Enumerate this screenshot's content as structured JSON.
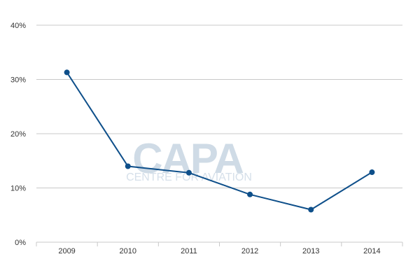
{
  "chart_data": {
    "type": "line",
    "x": [
      "2009",
      "2010",
      "2011",
      "2012",
      "2013",
      "2014"
    ],
    "series": [
      {
        "values": [
          31.3,
          14.0,
          12.8,
          8.8,
          6.0,
          12.9
        ]
      }
    ],
    "y_ticks": [
      "0%",
      "10%",
      "20%",
      "30%",
      "40%"
    ],
    "ylim": [
      0,
      40
    ],
    "grid": true,
    "line_color": "#0e4f8a",
    "grid_color": "#c8c8c8"
  },
  "watermark": {
    "logo_text": "CAPA",
    "tagline": "CENTRE FOR AVIATION"
  }
}
